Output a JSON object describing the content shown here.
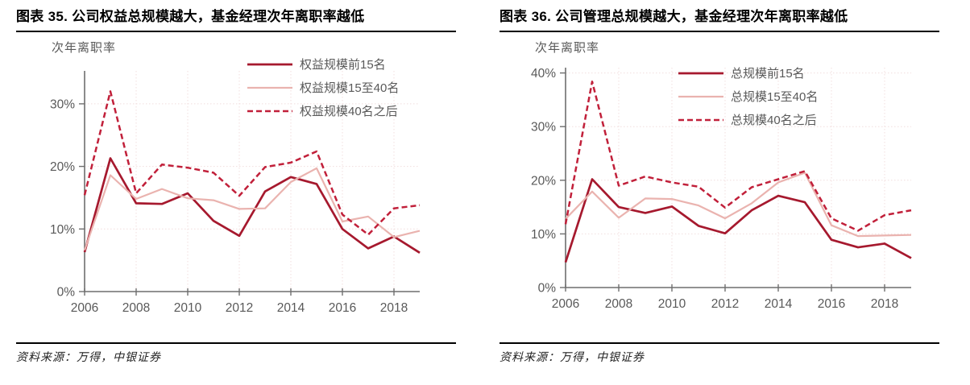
{
  "chart_data": [
    {
      "type": "line",
      "title": "图表 35. 公司权益总规模越大，基金经理次年离职率越低",
      "ylabel_text": "次年离职率",
      "source": "资料来源：万得，中银证券",
      "x": [
        2006,
        2007,
        2008,
        2009,
        2010,
        2011,
        2012,
        2013,
        2014,
        2015,
        2016,
        2017,
        2018,
        2019
      ],
      "xtick_labels": [
        "2006",
        "2008",
        "2010",
        "2012",
        "2014",
        "2016",
        "2018"
      ],
      "ytick_labels": [
        "0%",
        "10%",
        "20%",
        "30%"
      ],
      "ylim": [
        0,
        35
      ],
      "grid": "dotted",
      "legend_position": "top-right-inside",
      "series": [
        {
          "name": "权益规模前15名",
          "style": "solid",
          "color": "#A6192E",
          "width": 2.7,
          "values": [
            6.3,
            21.3,
            14.1,
            14.0,
            15.7,
            11.3,
            8.9,
            16.0,
            18.3,
            17.2,
            10.0,
            6.9,
            8.8,
            6.2
          ]
        },
        {
          "name": "权益规模15至40名",
          "style": "solid",
          "color": "#EAB3AF",
          "width": 2.2,
          "values": [
            6.6,
            18.6,
            14.8,
            16.4,
            14.9,
            14.6,
            13.2,
            13.3,
            17.5,
            19.7,
            11.2,
            12.0,
            8.7,
            9.7
          ]
        },
        {
          "name": "权益规模40名之后",
          "style": "dashed",
          "color": "#C1203A",
          "width": 2.5,
          "values": [
            15.4,
            32.0,
            15.7,
            20.3,
            19.8,
            19.0,
            15.3,
            19.9,
            20.6,
            22.4,
            12.3,
            9.1,
            13.3,
            13.8
          ]
        }
      ]
    },
    {
      "type": "line",
      "title": "图表 36. 公司管理总规模越大，基金经理次年离职率越低",
      "ylabel_text": "次年离职率",
      "source": "资料来源：万得，中银证券",
      "x": [
        2006,
        2007,
        2008,
        2009,
        2010,
        2011,
        2012,
        2013,
        2014,
        2015,
        2016,
        2017,
        2018,
        2019
      ],
      "xtick_labels": [
        "2006",
        "2008",
        "2010",
        "2012",
        "2014",
        "2016",
        "2018"
      ],
      "ytick_labels": [
        "0%",
        "10%",
        "20%",
        "30%",
        "40%"
      ],
      "ylim": [
        0,
        41
      ],
      "grid": "dotted",
      "legend_position": "top-right-inside",
      "series": [
        {
          "name": "总规模前15名",
          "style": "solid",
          "color": "#A6192E",
          "width": 2.7,
          "values": [
            4.7,
            20.2,
            15.0,
            13.9,
            15.1,
            11.5,
            10.1,
            14.4,
            17.1,
            15.9,
            8.9,
            7.5,
            8.2,
            5.5
          ]
        },
        {
          "name": "总规模15至40名",
          "style": "solid",
          "color": "#EAB3AF",
          "width": 2.2,
          "values": [
            12.8,
            17.9,
            13.0,
            16.6,
            16.5,
            15.3,
            12.9,
            15.7,
            19.6,
            21.4,
            11.6,
            9.6,
            9.7,
            9.8
          ]
        },
        {
          "name": "总规模40名之后",
          "style": "dashed",
          "color": "#C1203A",
          "width": 2.5,
          "values": [
            11.8,
            38.4,
            19.0,
            20.7,
            19.6,
            18.8,
            14.9,
            18.7,
            20.2,
            21.7,
            12.9,
            10.6,
            13.5,
            14.4
          ]
        }
      ]
    }
  ],
  "style_colors": {
    "series_dark_red": "#A6192E",
    "series_light_pink": "#EAB3AF",
    "series_crimson_dashed": "#C1203A",
    "axis_gray": "#6e6e6e",
    "tick_text_gray": "#595959",
    "grid_pink": "#f1dede",
    "rule_black": "#000000"
  }
}
